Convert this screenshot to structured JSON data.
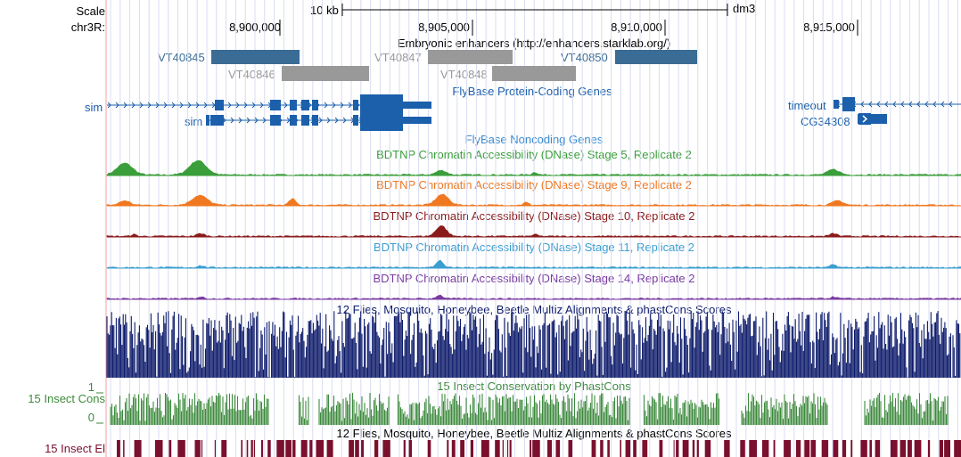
{
  "header": {
    "scale_label": "Scale",
    "chrom_label": "chr3R:",
    "scale_bar_text": "10 kb",
    "assembly": "dm3",
    "ruler": [
      "8,900,000",
      "8,905,000",
      "8,910,000",
      "8,915,000"
    ]
  },
  "enhancers": {
    "title": "Embryonic enhancers (http://enhancers.starklab.org/)",
    "items": [
      {
        "label": "VT40845",
        "color": "#3a6c96"
      },
      {
        "label": "VT40846",
        "color": "#999999"
      },
      {
        "label": "VT40847",
        "color": "#999999"
      },
      {
        "label": "VT40848",
        "color": "#999999"
      },
      {
        "label": "VT40850",
        "color": "#3a6c96"
      }
    ]
  },
  "genes": {
    "title": "FlyBase Protein-Coding Genes",
    "noncoding_title": "FlyBase Noncoding Genes",
    "items": [
      "sim",
      "sim",
      "timeout",
      "CG34308"
    ],
    "color": "#1c5fab"
  },
  "dnase": [
    {
      "title": "BDTNP Chromatin Accessibility (DNase) Stage 5, Replicate 2",
      "color": "#3a9e3a"
    },
    {
      "title": "BDTNP Chromatin Accessibility (DNase) Stage 9, Replicate 2",
      "color": "#f07820"
    },
    {
      "title": "BDTNP Chromatin Accessibility (DNase) Stage 10, Replicate 2",
      "color": "#8b1a1a"
    },
    {
      "title": "BDTNP Chromatin Accessibility (DNase) Stage 11, Replicate 2",
      "color": "#3a9ed0"
    },
    {
      "title": "BDTNP Chromatin Accessibility (DNase) Stage 14, Replicate 2",
      "color": "#7a3aa0"
    }
  ],
  "multiz": {
    "title": "12 Flies, Mosquito, Honeybee, Beetle Multiz Alignments & phastCons Scores",
    "color": "#0c1a6a"
  },
  "phastcons": {
    "title": "15 Insect Conservation by PhastCons",
    "left_label": "15 Insect Cons",
    "max_label": "1",
    "min_label": "0",
    "color": "#3d8a3d"
  },
  "elements": {
    "title": "12 Flies, Mosquito, Honeybee, Beetle Multiz Alignments & phastCons Scores",
    "left_label": "15 Insect El",
    "color": "#7a0f2e"
  }
}
